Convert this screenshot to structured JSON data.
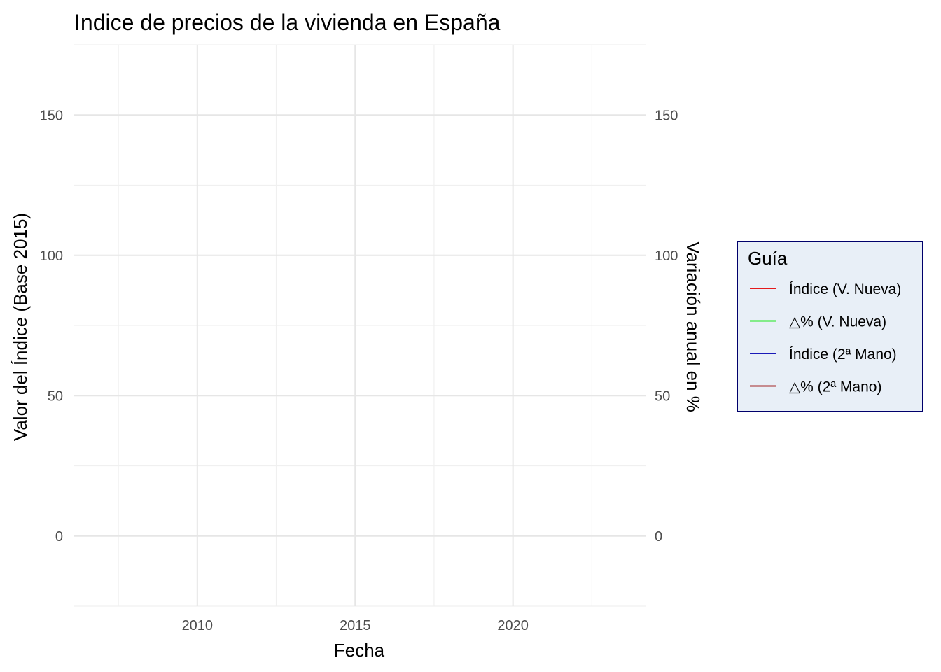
{
  "chart_data": {
    "type": "line",
    "title": "Indice de precios de la vivienda en España",
    "xlabel": "Fecha",
    "ylabel": "Valor del Índice (Base 2015)",
    "y2label": "Variación anual en %",
    "x_ticks": [
      "2010",
      "2015",
      "2020"
    ],
    "x_tick_values": [
      2010,
      2015,
      2020
    ],
    "xlim": [
      2006.1,
      2024.2
    ],
    "y_ticks": [
      "0",
      "50",
      "100",
      "150"
    ],
    "y_tick_values": [
      0,
      50,
      100,
      150
    ],
    "ylim": [
      -25,
      175
    ],
    "y2_ticks": [
      "0",
      "50",
      "100",
      "150"
    ],
    "y2_tick_values": [
      0,
      50,
      100,
      150
    ],
    "grid": true,
    "legend_placement": "right",
    "legend": {
      "title": "Guía",
      "background": "#e8eff7",
      "border": "#00006b",
      "entries": [
        {
          "label": "Índice (V. Nueva)",
          "color": "#e41a1c"
        },
        {
          "label": "△% (V. Nueva)",
          "color": "#1ee81e"
        },
        {
          "label": "Índice (2ª Mano)",
          "color": "#1a1ab8"
        },
        {
          "label": "△% (2ª Mano)",
          "color": "#a52a2a"
        }
      ]
    },
    "series": [
      {
        "name": "Índice (V. Nueva)",
        "color": "#e41a1c",
        "values": []
      },
      {
        "name": "△% (V. Nueva)",
        "color": "#1ee81e",
        "values": []
      },
      {
        "name": "Índice (2ª Mano)",
        "color": "#1a1ab8",
        "values": []
      },
      {
        "name": "△% (2ª Mano)",
        "color": "#a52a2a",
        "values": []
      }
    ]
  }
}
